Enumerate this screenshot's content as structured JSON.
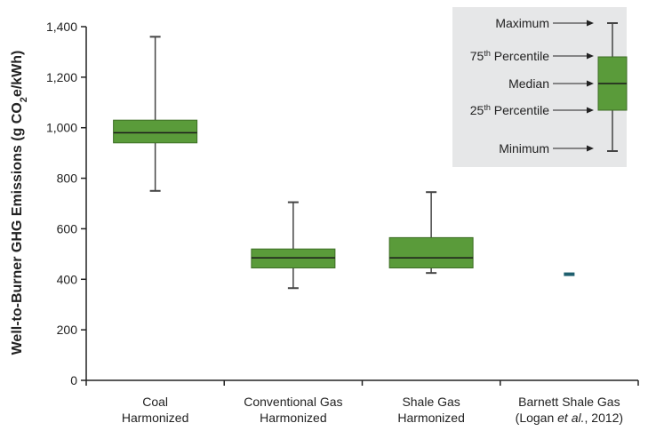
{
  "chart_data": {
    "type": "boxplot",
    "ylabel_main": "Well-to-Burner GHG Emissions (g CO",
    "ylabel_sub": "2",
    "ylabel_tail": "e/kWh)",
    "ylim": [
      0,
      1400
    ],
    "yticks": [
      0,
      200,
      400,
      600,
      800,
      1000,
      1200,
      1400
    ],
    "ytick_labels": [
      "0",
      "200",
      "400",
      "600",
      "800",
      "1,000",
      "1,200",
      "1,400"
    ],
    "categories": [
      {
        "line1": "Coal",
        "line2": "Harmonized"
      },
      {
        "line1": "Conventional Gas",
        "line2": "Harmonized"
      },
      {
        "line1": "Shale Gas",
        "line2": "Harmonized"
      },
      {
        "line1": "Barnett Shale Gas",
        "line2_pre": "(Logan ",
        "line2_it": "et al.",
        "line2_post": ", 2012)"
      }
    ],
    "boxes": [
      {
        "min": 750,
        "q1": 940,
        "median": 980,
        "q3": 1030,
        "max": 1360
      },
      {
        "min": 365,
        "q1": 445,
        "median": 485,
        "q3": 520,
        "max": 705
      },
      {
        "min": 425,
        "q1": 445,
        "median": 485,
        "q3": 565,
        "max": 745
      },
      {
        "point": 420
      }
    ],
    "legend": {
      "maximum": "Maximum",
      "p75_base": "75",
      "p75_sup": "th",
      "p75_tail": " Percentile",
      "median": "Median",
      "p25_base": "25",
      "p25_sup": "th",
      "p25_tail": " Percentile",
      "minimum": "Minimum"
    },
    "colors": {
      "box_fill": "#5a9b3a",
      "box_stroke": "#3d6e25",
      "whisker": "#444444",
      "point": "#1f5f6e",
      "legend_bg": "#e6e7e8",
      "axis": "#222222"
    }
  }
}
